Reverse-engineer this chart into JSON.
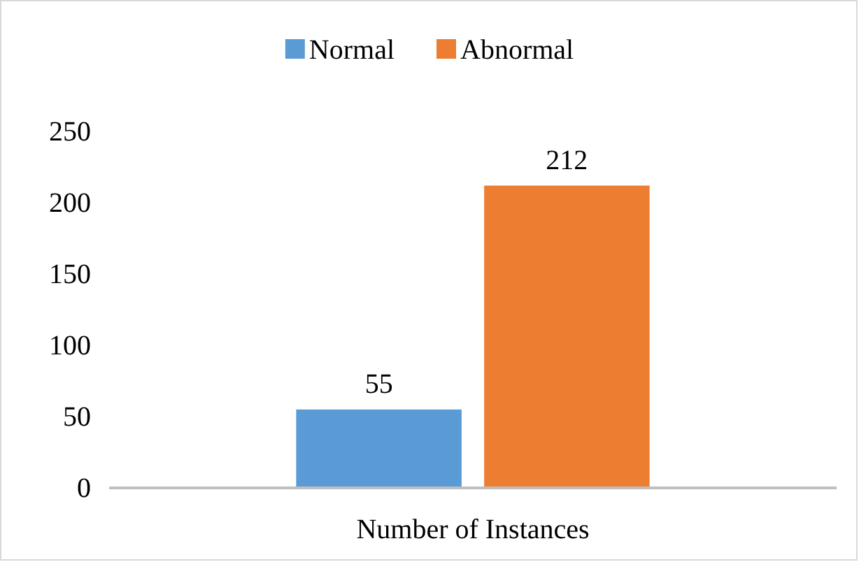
{
  "chart_data": {
    "type": "bar",
    "categories": [
      "Number of Instances"
    ],
    "series": [
      {
        "name": "Normal",
        "color": "#5b9bd5",
        "values": [
          55
        ]
      },
      {
        "name": "Abnormal",
        "color": "#ed7d31",
        "values": [
          212
        ]
      }
    ],
    "ylim": [
      0,
      250
    ],
    "yticks": [
      0,
      50,
      100,
      150,
      200,
      250
    ],
    "grid": false,
    "legend": "top",
    "data_labels": true
  }
}
